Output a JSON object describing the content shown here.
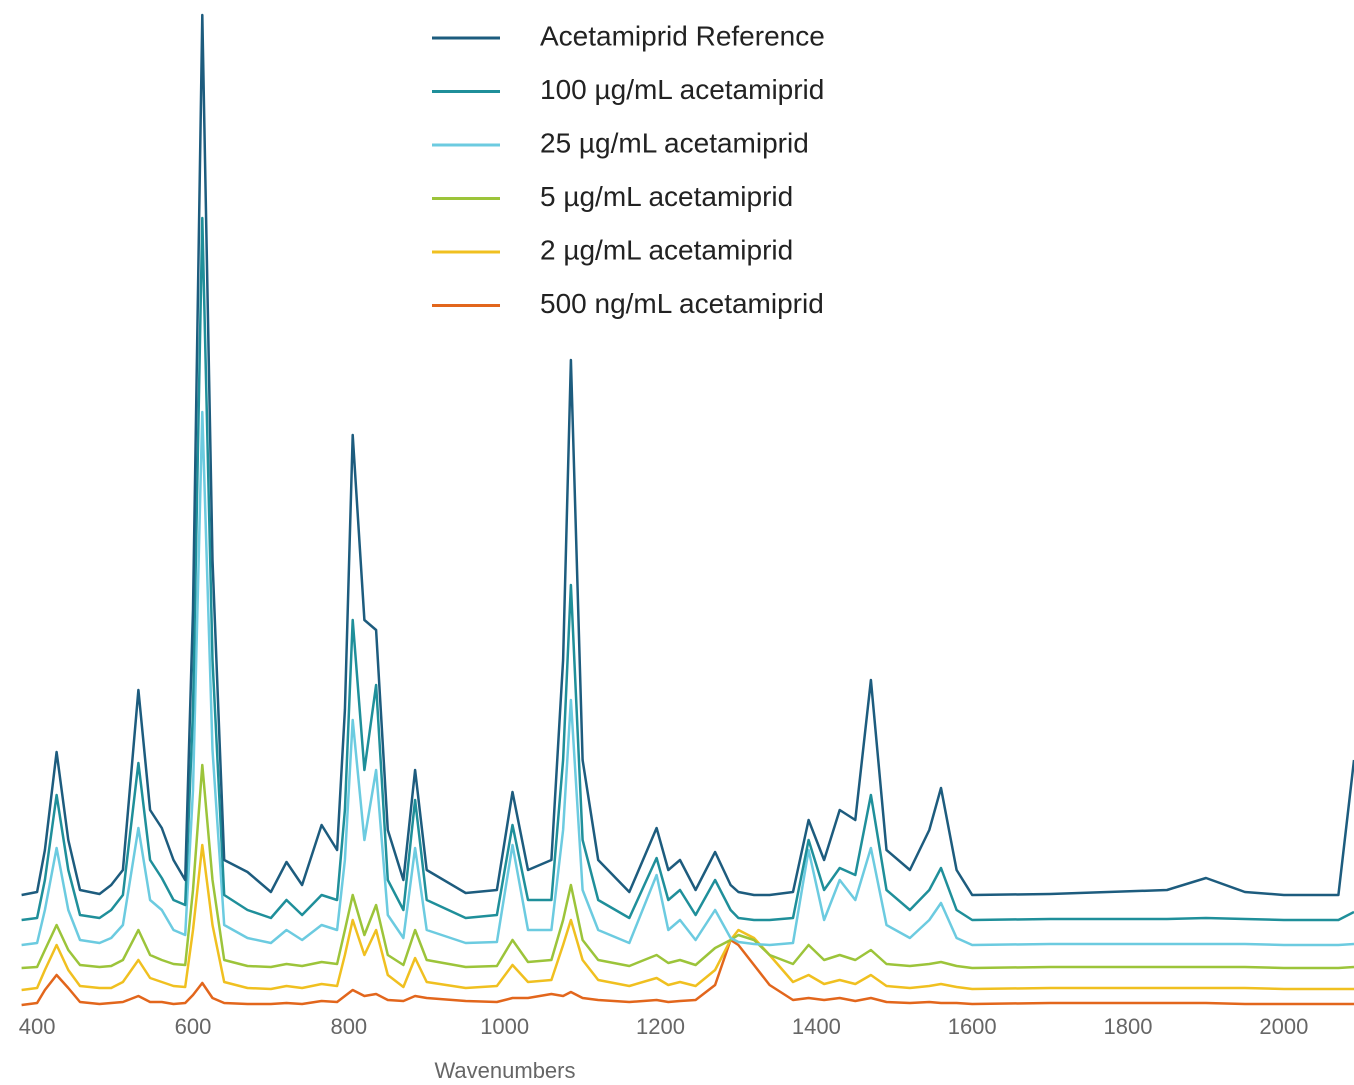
{
  "chart_data": {
    "type": "line",
    "x_label": "Wavenumbers",
    "legend": "top",
    "grid": false,
    "xlim": [
      378,
      2090
    ],
    "xticks": [
      400,
      600,
      800,
      1000,
      1200,
      1400,
      1600,
      1800,
      2000
    ],
    "ylim": [
      0,
      1000
    ],
    "x": [
      380,
      400,
      410,
      425,
      440,
      455,
      480,
      495,
      510,
      530,
      545,
      560,
      575,
      590,
      600,
      612,
      625,
      640,
      670,
      700,
      720,
      740,
      765,
      785,
      795,
      805,
      820,
      835,
      850,
      870,
      885,
      900,
      950,
      990,
      1010,
      1030,
      1060,
      1075,
      1085,
      1100,
      1120,
      1160,
      1195,
      1210,
      1225,
      1245,
      1270,
      1290,
      1300,
      1320,
      1340,
      1370,
      1390,
      1410,
      1430,
      1450,
      1470,
      1490,
      1520,
      1545,
      1560,
      1580,
      1600,
      1700,
      1850,
      1900,
      1950,
      2000,
      2070,
      2090
    ],
    "series": [
      {
        "name": "Acetamiprid Reference",
        "color": "#1d5c7e",
        "values": [
          115,
          118,
          160,
          258,
          170,
          120,
          116,
          125,
          140,
          320,
          200,
          182,
          150,
          130,
          400,
          995,
          450,
          150,
          138,
          118,
          148,
          125,
          185,
          160,
          300,
          575,
          390,
          380,
          180,
          130,
          240,
          140,
          117,
          120,
          218,
          140,
          150,
          350,
          650,
          250,
          150,
          118,
          182,
          140,
          150,
          120,
          158,
          125,
          118,
          115,
          115,
          118,
          190,
          150,
          200,
          190,
          330,
          160,
          140,
          180,
          222,
          140,
          115,
          116,
          120,
          132,
          118,
          115,
          115,
          250
        ]
      },
      {
        "name": "100 µg/mL acetamiprid",
        "color": "#1f8f9a",
        "values": [
          90,
          92,
          130,
          215,
          140,
          95,
          92,
          100,
          115,
          247,
          150,
          132,
          110,
          105,
          300,
          792,
          350,
          115,
          100,
          92,
          110,
          95,
          115,
          110,
          200,
          390,
          240,
          325,
          130,
          100,
          210,
          110,
          92,
          95,
          185,
          110,
          110,
          250,
          425,
          170,
          110,
          92,
          152,
          110,
          120,
          95,
          130,
          100,
          92,
          90,
          90,
          92,
          170,
          120,
          142,
          135,
          215,
          120,
          100,
          120,
          142,
          100,
          90,
          91,
          91,
          92,
          91,
          90,
          90,
          98
        ]
      },
      {
        "name": "25 µg/mL acetamiprid",
        "color": "#6ccbe0",
        "values": [
          65,
          67,
          100,
          162,
          100,
          70,
          67,
          72,
          85,
          182,
          110,
          100,
          80,
          75,
          220,
          598,
          260,
          85,
          72,
          67,
          80,
          70,
          85,
          80,
          150,
          290,
          170,
          240,
          95,
          72,
          162,
          80,
          67,
          68,
          165,
          80,
          80,
          180,
          310,
          120,
          80,
          67,
          135,
          80,
          90,
          70,
          100,
          72,
          68,
          66,
          65,
          67,
          160,
          90,
          130,
          110,
          162,
          85,
          72,
          90,
          107,
          72,
          65,
          66,
          66,
          66,
          66,
          65,
          65,
          66
        ]
      },
      {
        "name": "5 µg/mL acetamiprid",
        "color": "#9cc43a",
        "values": [
          42,
          43,
          60,
          85,
          60,
          45,
          43,
          44,
          50,
          80,
          55,
          50,
          46,
          45,
          120,
          245,
          130,
          50,
          44,
          43,
          46,
          44,
          48,
          46,
          80,
          115,
          75,
          105,
          55,
          45,
          80,
          50,
          43,
          44,
          70,
          48,
          50,
          90,
          125,
          70,
          50,
          44,
          55,
          47,
          50,
          45,
          62,
          70,
          75,
          70,
          55,
          46,
          65,
          50,
          55,
          50,
          60,
          46,
          44,
          46,
          48,
          44,
          42,
          43,
          43,
          43,
          43,
          42,
          42,
          43
        ]
      },
      {
        "name": "2 µg/mL acetamiprid",
        "color": "#f0c020",
        "values": [
          20,
          22,
          40,
          65,
          40,
          24,
          22,
          22,
          28,
          50,
          32,
          28,
          24,
          23,
          80,
          165,
          85,
          28,
          22,
          21,
          24,
          22,
          26,
          24,
          55,
          90,
          55,
          80,
          35,
          23,
          52,
          28,
          22,
          24,
          45,
          28,
          30,
          65,
          90,
          50,
          30,
          24,
          32,
          25,
          28,
          24,
          40,
          70,
          80,
          72,
          55,
          28,
          35,
          26,
          30,
          26,
          35,
          24,
          22,
          24,
          26,
          23,
          21,
          22,
          22,
          22,
          22,
          21,
          21,
          21
        ]
      },
      {
        "name": "500 ng/mL acetamiprid",
        "color": "#e2661c",
        "values": [
          5,
          7,
          20,
          35,
          22,
          8,
          6,
          7,
          8,
          14,
          8,
          8,
          6,
          7,
          15,
          27,
          12,
          7,
          6,
          6,
          7,
          6,
          9,
          8,
          14,
          20,
          14,
          16,
          10,
          9,
          14,
          12,
          9,
          8,
          12,
          12,
          16,
          14,
          18,
          12,
          10,
          8,
          10,
          8,
          9,
          10,
          25,
          70,
          65,
          45,
          25,
          10,
          12,
          10,
          12,
          9,
          12,
          8,
          7,
          8,
          7,
          7,
          6,
          7,
          7,
          7,
          6,
          6,
          6,
          6
        ]
      }
    ]
  }
}
